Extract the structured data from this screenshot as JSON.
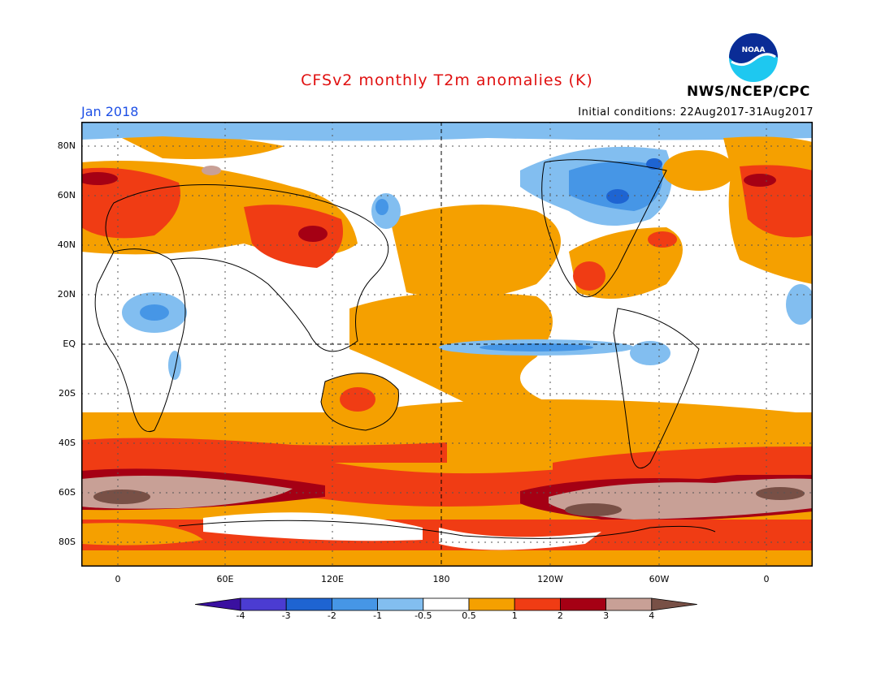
{
  "title": "CFSv2 monthly T2m anomalies (K)",
  "date_label": "Jan 2018",
  "initial_conditions": "Initial conditions: 22Aug2017-31Aug2017",
  "agency": "NWS/NCEP/CPC",
  "logo_text": "NOAA",
  "lat_labels": [
    "80N",
    "60N",
    "40N",
    "20N",
    "EQ",
    "20S",
    "40S",
    "60S",
    "80S"
  ],
  "lon_labels": [
    "0",
    "60E",
    "120E",
    "180",
    "120W",
    "60W",
    "0"
  ],
  "colorbar": {
    "labels": [
      "-4",
      "-3",
      "-2",
      "-1",
      "-0.5",
      "0.5",
      "1",
      "2",
      "3",
      "4"
    ],
    "colors": [
      "#3a10a0",
      "#4b3cd2",
      "#1e64d2",
      "#4696e6",
      "#82bef0",
      "#ffffff",
      "#f5a000",
      "#f03c14",
      "#a50014",
      "#c8a096",
      "#785046"
    ]
  },
  "colors": {
    "title": "#e01010",
    "date": "#1e50e6",
    "light_orange": "#f5a000",
    "red": "#f03c14",
    "dark_red": "#a50014",
    "brown_light": "#c8a096",
    "brown_dark": "#785046",
    "light_blue": "#82bef0",
    "blue": "#4696e6",
    "dark_blue": "#1e64d2"
  }
}
